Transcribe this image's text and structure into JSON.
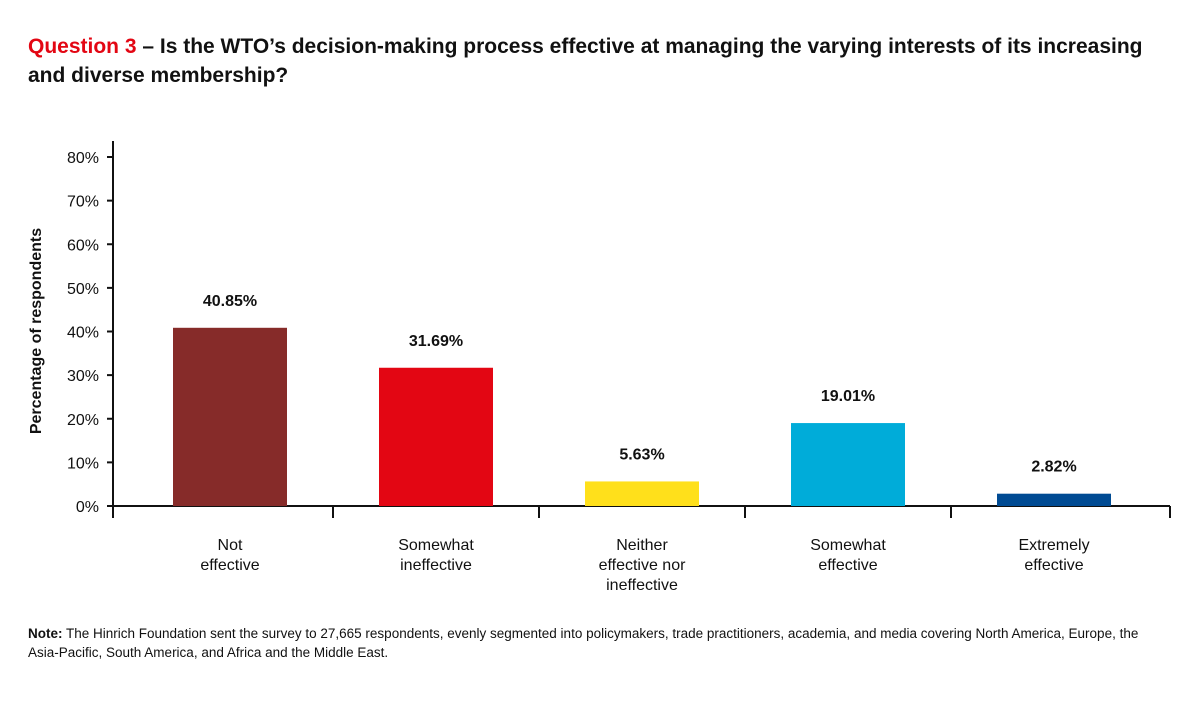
{
  "title": {
    "prefix": "Question 3",
    "text": " – Is the WTO’s decision-making process effective at managing the varying interests of its increasing and diverse membership?"
  },
  "chart_data": {
    "type": "bar",
    "title": "",
    "xlabel": "",
    "ylabel": "Percentage of respondents",
    "ylim": [
      0,
      80
    ],
    "yticks": [
      "0%",
      "10%",
      "20%",
      "30%",
      "40%",
      "50%",
      "60%",
      "70%",
      "80%"
    ],
    "categories": [
      [
        "Not",
        "effective"
      ],
      [
        "Somewhat",
        "ineffective"
      ],
      [
        "Neither",
        "effective nor",
        "ineffective"
      ],
      [
        "Somewhat",
        "effective"
      ],
      [
        "Extremely",
        "effective"
      ]
    ],
    "values": [
      40.85,
      31.69,
      5.63,
      19.01,
      2.82
    ],
    "data_labels": [
      "40.85%",
      "31.69%",
      "5.63%",
      "19.01%",
      "2.82%"
    ],
    "colors": [
      "#862b29",
      "#e30613",
      "#ffe01b",
      "#00acd9",
      "#004b93"
    ],
    "grid": false,
    "legend": "none"
  },
  "note": {
    "label": "Note:",
    "text": " The Hinrich Foundation sent the survey to 27,665 respondents, evenly segmented into policymakers, trade practitioners, academia, and media covering North America, Europe, the Asia-Pacific, South America, and Africa and the Middle East."
  }
}
